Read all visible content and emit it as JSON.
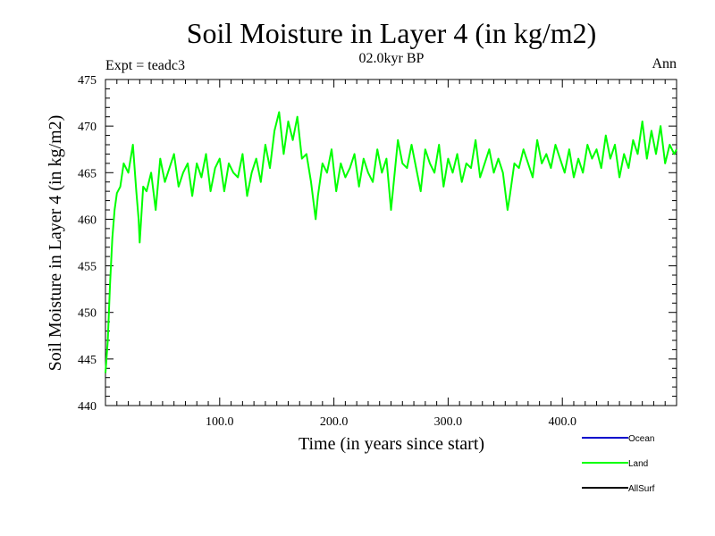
{
  "chart_data": {
    "type": "line",
    "title": "Soil Moisture in Layer 4 (in kg/m2)",
    "subtitle": "02.0kyr BP",
    "left_label": "Expt = teadc3",
    "right_label": "Ann",
    "xlabel": "Time (in years since start)",
    "ylabel": "Soil Moisture in Layer 4 (in kg/m2)",
    "xlim": [
      0,
      500
    ],
    "ylim": [
      440,
      475
    ],
    "x_ticks": [
      100,
      200,
      300,
      400
    ],
    "x_tick_labels": [
      "100.0",
      "200.0",
      "300.0",
      "400.0"
    ],
    "y_ticks": [
      440,
      445,
      450,
      455,
      460,
      465,
      470,
      475
    ],
    "y_tick_labels": [
      "440",
      "445",
      "450",
      "455",
      "460",
      "465",
      "470",
      "475"
    ],
    "legend": [
      {
        "name": "Ocean",
        "color": "#0000cc"
      },
      {
        "name": "Land",
        "color": "#00ff00"
      },
      {
        "name": "AllSurf",
        "color": "#000000"
      }
    ],
    "series": [
      {
        "name": "Land",
        "color": "#00ff00",
        "x": [
          0,
          2,
          4,
          6,
          8,
          10,
          13,
          16,
          20,
          24,
          27,
          29,
          30,
          33,
          36,
          40,
          44,
          48,
          52,
          56,
          60,
          64,
          68,
          72,
          76,
          80,
          84,
          88,
          92,
          96,
          100,
          104,
          108,
          112,
          116,
          120,
          124,
          128,
          132,
          136,
          140,
          144,
          148,
          152,
          156,
          160,
          164,
          168,
          172,
          176,
          180,
          184,
          186,
          190,
          194,
          198,
          202,
          206,
          210,
          214,
          218,
          222,
          226,
          230,
          234,
          238,
          242,
          246,
          250,
          252,
          256,
          260,
          264,
          268,
          272,
          276,
          280,
          284,
          288,
          292,
          296,
          300,
          304,
          308,
          312,
          316,
          320,
          324,
          328,
          332,
          336,
          340,
          344,
          348,
          352,
          354,
          358,
          362,
          366,
          370,
          374,
          378,
          382,
          386,
          390,
          394,
          398,
          402,
          406,
          410,
          414,
          418,
          422,
          426,
          430,
          434,
          438,
          442,
          446,
          450,
          454,
          458,
          462,
          466,
          470,
          474,
          478,
          482,
          486,
          490,
          494,
          498,
          500
        ],
        "values": [
          443.5,
          447,
          453,
          458,
          461,
          462.8,
          463.5,
          466,
          465,
          468,
          463,
          460,
          457.5,
          463.5,
          463,
          465,
          461,
          466.5,
          464,
          465.5,
          467,
          463.5,
          465,
          466,
          462.5,
          466,
          464.5,
          467,
          463,
          465.5,
          466.5,
          463,
          466,
          465,
          464.5,
          467,
          462.5,
          465,
          466.5,
          464,
          468,
          465.5,
          469.5,
          471.5,
          467,
          470.5,
          468.5,
          471,
          466.5,
          467,
          464,
          460,
          462.5,
          466,
          465,
          467.5,
          463,
          466,
          464.5,
          465.5,
          467,
          463.5,
          466.5,
          465,
          464,
          467.5,
          465,
          466.5,
          461,
          463.5,
          468.5,
          466,
          465.5,
          468,
          465.5,
          463,
          467.5,
          466,
          465,
          468,
          463.5,
          466.5,
          465,
          467,
          464,
          466,
          465.5,
          468.5,
          464.5,
          466,
          467.5,
          465,
          466.5,
          465,
          461,
          462.5,
          466,
          465.5,
          467.5,
          466,
          464.5,
          468.5,
          466,
          467,
          465.5,
          468,
          466.5,
          465,
          467.5,
          464.5,
          466.5,
          465,
          468,
          466.5,
          467.5,
          465.5,
          469,
          466.5,
          468,
          464.5,
          467,
          465.5,
          468.5,
          467,
          470.5,
          466.5,
          469.5,
          467,
          470,
          466,
          468,
          467,
          467.5
        ]
      }
    ]
  }
}
